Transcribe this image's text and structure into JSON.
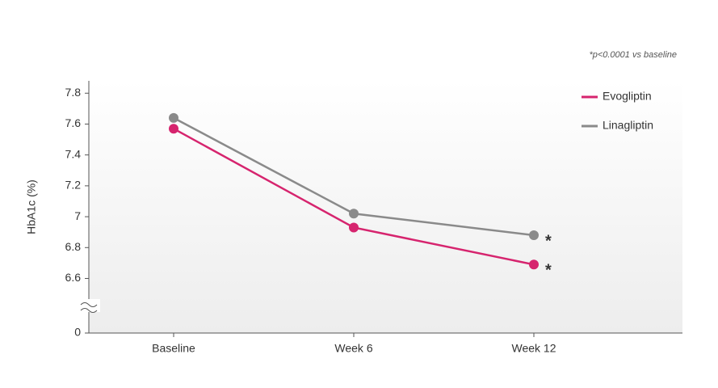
{
  "chart_data": {
    "type": "line",
    "footnote": "*p<0.0001 vs baseline",
    "y_label": "HbA1c (%)",
    "categories": [
      "Baseline",
      "Week 6",
      "Week 12"
    ],
    "series": [
      {
        "name": "Evogliptin",
        "color": "#d6246e",
        "values": [
          7.57,
          6.93,
          6.69
        ]
      },
      {
        "name": "Linagliptin",
        "color": "#8a8a8a",
        "values": [
          7.64,
          7.02,
          6.88
        ]
      }
    ],
    "annotations": [
      {
        "text": "*",
        "series": 1,
        "index": 2
      },
      {
        "text": "*",
        "series": 0,
        "index": 2
      }
    ],
    "ylim": [
      0,
      7.88
    ],
    "axis_break": [
      0,
      6.45
    ],
    "yticks": [
      0,
      6.6,
      6.8,
      {
        "value": 7.0,
        "label": "7"
      },
      7.2,
      7.4,
      7.6,
      7.8
    ],
    "legend": "top-right"
  }
}
